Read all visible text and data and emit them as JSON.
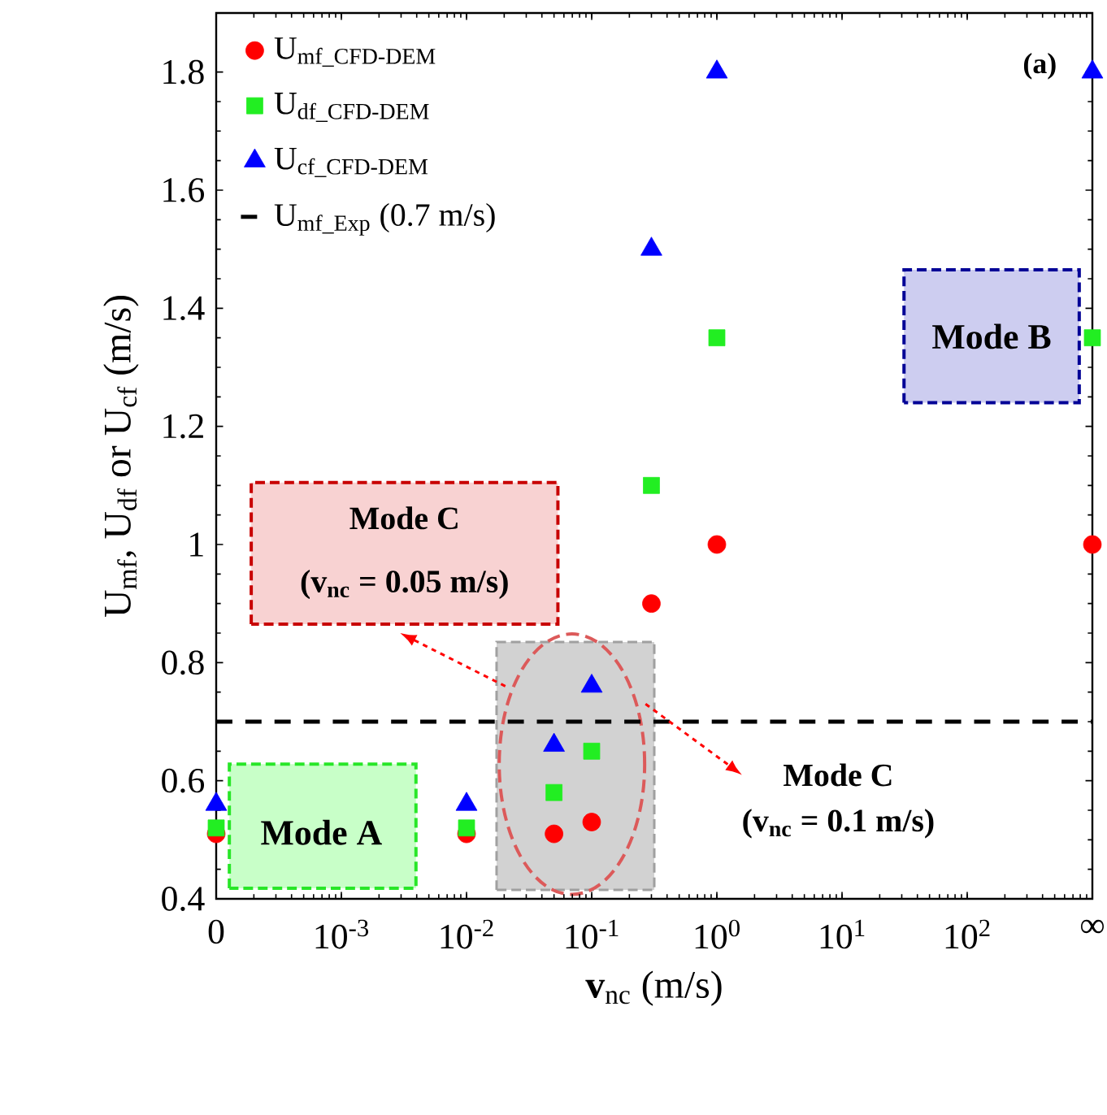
{
  "chart_data": {
    "type": "scatter",
    "xlabel": "**v**$_{nc}$ (m/s)",
    "ylabel": "U$_{mf}$, U$_{df}$ or U$_{cf}$ (m/s)",
    "log": "x",
    "xlim": [
      0.0001,
      1000
    ],
    "ylim": [
      0.4,
      1.9
    ],
    "xticks": [
      {
        "value": 0.0001,
        "label": "0"
      },
      {
        "value": 0.001,
        "label": "10$^{-3}$"
      },
      {
        "value": 0.01,
        "label": "10$^{-2}$"
      },
      {
        "value": 0.1,
        "label": "10$^{-1}$"
      },
      {
        "value": 1,
        "label": "10$^{0}$"
      },
      {
        "value": 10,
        "label": "10$^{1}$"
      },
      {
        "value": 100,
        "label": "10$^{2}$"
      },
      {
        "value": 1000,
        "label": "∞"
      }
    ],
    "yticks": [
      0.4,
      0.6,
      0.8,
      1,
      1.2,
      1.4,
      1.6,
      1.8
    ],
    "x": [
      0.0001,
      0.01,
      0.05,
      0.1,
      0.3,
      1,
      1000
    ],
    "series": [
      {
        "name": "U$_{mf_CFD-DEM}$",
        "color": "#ff0000",
        "marker": "circle",
        "values": [
          0.51,
          0.51,
          0.51,
          0.53,
          0.9,
          1.0,
          1.0
        ]
      },
      {
        "name": "U$_{df_CFD-DEM}$",
        "color": "#22ee22",
        "marker": "square",
        "values": [
          0.52,
          0.52,
          0.58,
          0.65,
          1.1,
          1.35,
          1.35
        ]
      },
      {
        "name": "U$_{cf_CFD-DEM}$",
        "color": "#0000ff",
        "marker": "triangle",
        "values": [
          0.56,
          0.56,
          0.66,
          0.76,
          1.5,
          1.8,
          1.8
        ]
      }
    ],
    "ref_lines": [
      {
        "axis": "y",
        "value": 0.7,
        "label": "U$_{mf_Exp}$ (0.7 m/s)",
        "color": "#000000",
        "line_style": "dashed"
      }
    ],
    "legend": "top left",
    "annotations": [
      "(a)",
      "Mode A",
      "Mode B",
      "Mode C",
      "(v$_{nc}$ = 0.05 m/s)",
      "Mode C",
      "(v$_{nc}$ = 0.1 m/s)"
    ]
  }
}
